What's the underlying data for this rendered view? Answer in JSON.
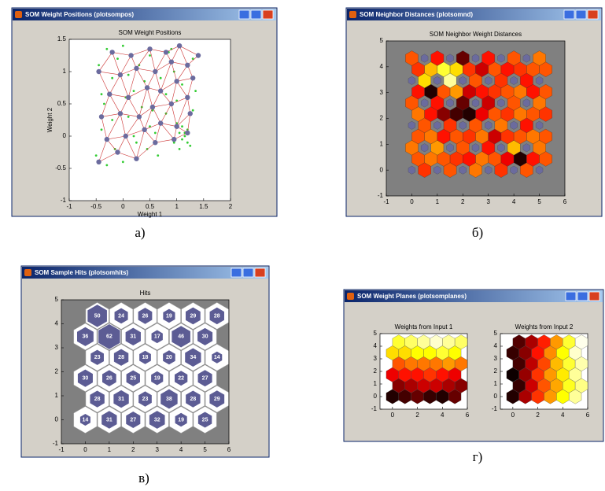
{
  "windows": [
    {
      "title": "SOM Weight Positions (plotsompos)",
      "caption": "а)",
      "chart": {
        "type": "scatter",
        "title": "SOM Weight Positions",
        "x_label": "Weight 1",
        "y_label": "Weight 2",
        "xlim": [
          -1,
          2
        ],
        "ylim": [
          -1,
          1.5
        ],
        "xticks": [
          -1,
          -0.5,
          0,
          0.5,
          1,
          1.5,
          2
        ],
        "yticks": [
          -1,
          -0.5,
          0,
          0.5,
          1,
          1.5
        ],
        "axes_color": "#ffffff",
        "point_color": "#33cc33",
        "neuron_color": "#6b6b9e",
        "link_color": "#cc3333",
        "points": {
          "x": [
            -0.5,
            -0.4,
            -0.35,
            -0.2,
            -0.1,
            0.0,
            0.1,
            0.2,
            0.3,
            0.45,
            0.55,
            0.7,
            0.85,
            0.95,
            1.05,
            1.1,
            1.15,
            1.2,
            1.25,
            1.0,
            1.1,
            1.3,
            -0.45,
            -0.3,
            -0.15,
            0.05,
            0.2,
            0.35,
            0.5,
            0.65,
            0.8,
            0.95,
            1.1,
            1.3,
            -0.4,
            -0.2,
            0.0,
            0.25,
            0.4,
            0.6,
            0.8,
            1.0,
            1.2,
            1.35,
            -0.3,
            0.1,
            0.5,
            0.9,
            1.15,
            1.05
          ],
          "y": [
            -0.3,
            0.1,
            0.5,
            0.9,
            1.2,
            -0.4,
            0.3,
            0.7,
            1.1,
            -0.2,
            0.4,
            0.9,
            1.3,
            -0.1,
            0.05,
            -0.05,
            0.0,
            0.1,
            -0.15,
            0.2,
            0.15,
            0.4,
            1.1,
            1.35,
            -0.2,
            0.6,
            0.0,
            0.45,
            1.25,
            -0.3,
            0.65,
            1.0,
            0.8,
            1.2,
            0.65,
            0.25,
            1.4,
            -0.1,
            0.85,
            0.05,
            0.35,
            0.55,
            -0.1,
            0.7,
            -0.45,
            0.95,
            0.15,
            1.35,
            0.05,
            -0.2
          ]
        },
        "neurons": {
          "x": [
            -0.45,
            -0.1,
            0.25,
            0.6,
            0.95,
            1.2,
            -0.3,
            0.05,
            0.4,
            0.7,
            1.0,
            1.25,
            -0.4,
            -0.05,
            0.3,
            0.55,
            0.9,
            1.2,
            -0.25,
            0.1,
            0.45,
            0.7,
            1.0,
            1.3,
            -0.45,
            -0.05,
            0.25,
            0.6,
            0.9,
            1.2,
            -0.2,
            0.15,
            0.5,
            0.8,
            1.05,
            1.4
          ],
          "y": [
            -0.4,
            -0.25,
            -0.35,
            -0.1,
            -0.05,
            0.05,
            -0.05,
            0.0,
            0.1,
            0.2,
            0.15,
            0.35,
            0.3,
            0.35,
            0.3,
            0.45,
            0.5,
            0.6,
            0.65,
            0.6,
            0.75,
            0.7,
            0.85,
            0.9,
            1.0,
            0.95,
            1.05,
            1.0,
            1.15,
            1.1,
            1.3,
            1.25,
            1.35,
            1.3,
            1.4,
            1.25
          ]
        }
      }
    },
    {
      "title": "SOM Neighbor Distances (plotsomnd)",
      "caption": "б)",
      "chart": {
        "type": "hexdist",
        "title": "SOM Neighbor Weight Distances",
        "xlim": [
          -1,
          6
        ],
        "ylim": [
          -1,
          5
        ],
        "xticks": [
          -1,
          0,
          1,
          2,
          3,
          4,
          5,
          6
        ],
        "yticks": [
          -1,
          0,
          1,
          2,
          3,
          4,
          5
        ],
        "axes_color": "#808080",
        "neuron_color": "#6b6b9e",
        "distances": [
          [
            null,
            0.55,
            null,
            0.5,
            null,
            0.45,
            null,
            0.55,
            null,
            0.5,
            null
          ],
          [
            0.5,
            0.45,
            0.5,
            0.55,
            0.6,
            0.45,
            0.5,
            0.65,
            0.95,
            0.6,
            0.5
          ],
          [
            0.45,
            null,
            0.4,
            null,
            0.5,
            null,
            0.6,
            null,
            0.35,
            null,
            0.45
          ],
          [
            0.5,
            0.45,
            0.6,
            0.5,
            0.55,
            0.45,
            0.7,
            0.55,
            0.5,
            0.45,
            0.5
          ],
          [
            null,
            0.5,
            null,
            0.55,
            null,
            0.5,
            null,
            0.45,
            null,
            0.6,
            null
          ],
          [
            0.45,
            0.6,
            0.8,
            0.9,
            0.95,
            0.65,
            0.5,
            0.55,
            0.45,
            0.5,
            0.55
          ],
          [
            0.5,
            null,
            0.6,
            null,
            0.85,
            null,
            0.7,
            null,
            0.5,
            null,
            0.45
          ],
          [
            0.6,
            0.95,
            0.5,
            0.4,
            0.7,
            0.6,
            0.55,
            0.5,
            0.45,
            0.6,
            0.5
          ],
          [
            null,
            0.3,
            null,
            0.1,
            null,
            0.5,
            null,
            0.55,
            null,
            0.6,
            null
          ],
          [
            0.55,
            0.35,
            0.2,
            0.3,
            0.55,
            0.7,
            0.5,
            0.6,
            0.55,
            0.5,
            0.5
          ],
          [
            0.5,
            null,
            0.6,
            null,
            0.85,
            null,
            0.6,
            null,
            0.5,
            null,
            0.45
          ]
        ]
      }
    },
    {
      "title": "SOM Sample Hits (plotsomhits)",
      "caption": "в)",
      "chart": {
        "type": "hexhits",
        "title": "Hits",
        "xlim": [
          -1,
          6
        ],
        "ylim": [
          -1,
          5
        ],
        "xticks": [
          -1,
          0,
          1,
          2,
          3,
          4,
          5,
          6
        ],
        "yticks": [
          -1,
          0,
          1,
          2,
          3,
          4,
          5
        ],
        "axes_color": "#808080",
        "color": "#5c5c94",
        "values": [
          14,
          31,
          27,
          32,
          19,
          25,
          28,
          31,
          23,
          38,
          28,
          29,
          30,
          26,
          25,
          19,
          22,
          27,
          23,
          28,
          18,
          20,
          34,
          14,
          36,
          62,
          31,
          17,
          46,
          30,
          50,
          24,
          26,
          19,
          29,
          28
        ]
      }
    },
    {
      "title": "SOM Weight Planes (plotsomplanes)",
      "caption": "г)",
      "chart": {
        "type": "hexplanes",
        "xlim": [
          -1,
          6
        ],
        "ylim": [
          -1,
          5
        ],
        "xticks": [
          0,
          2,
          4,
          6
        ],
        "yticks": [
          -1,
          0,
          1,
          2,
          3,
          4,
          5
        ],
        "axes_color": "#ffffff",
        "planes": [
          {
            "title": "Weights from Input 1",
            "values": [
              0.05,
              0.1,
              0.15,
              0.08,
              0.05,
              0.15,
              0.2,
              0.25,
              0.3,
              0.3,
              0.25,
              0.2,
              0.35,
              0.4,
              0.4,
              0.45,
              0.4,
              0.35,
              0.5,
              0.55,
              0.55,
              0.55,
              0.6,
              0.55,
              0.7,
              0.7,
              0.75,
              0.75,
              0.8,
              0.75,
              0.8,
              0.85,
              0.9,
              0.95,
              0.9,
              0.85
            ]
          },
          {
            "title": "Weights from Input 2",
            "values": [
              0.05,
              0.25,
              0.45,
              0.6,
              0.75,
              0.9,
              0.08,
              0.3,
              0.5,
              0.62,
              0.78,
              0.88,
              0.02,
              0.22,
              0.45,
              0.6,
              0.72,
              0.9,
              0.1,
              0.28,
              0.48,
              0.65,
              0.8,
              0.92,
              0.08,
              0.2,
              0.4,
              0.58,
              0.75,
              0.95,
              0.12,
              0.25,
              0.42,
              0.6,
              0.8,
              0.98
            ]
          }
        ]
      }
    }
  ]
}
